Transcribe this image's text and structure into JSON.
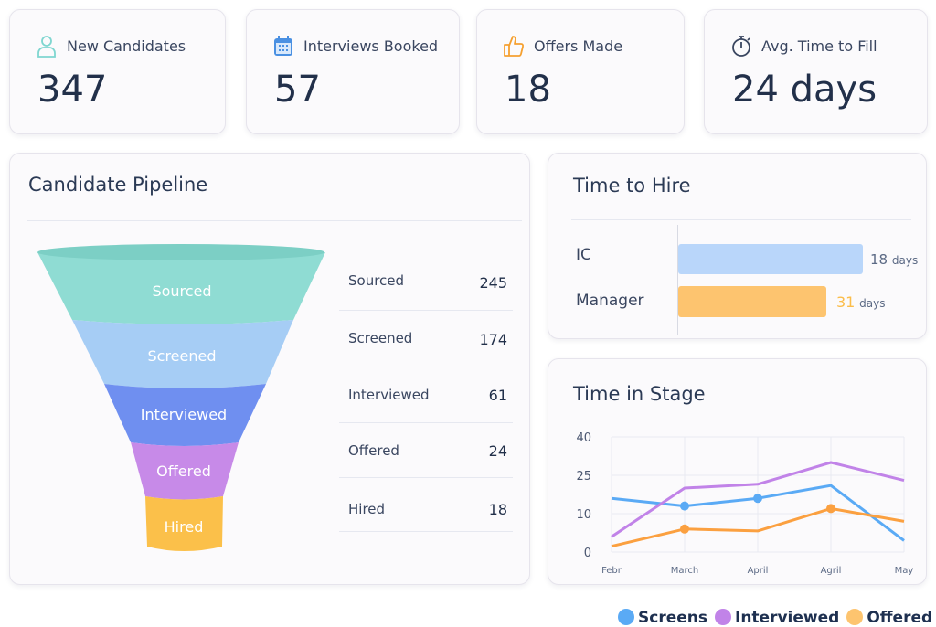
{
  "kpis": [
    {
      "label": "New Candidates",
      "value": "347",
      "icon": "person-icon",
      "color": "#7fd6d0"
    },
    {
      "label": "Interviews Booked",
      "value": "57",
      "icon": "calendar-icon",
      "color": "#4a90e2"
    },
    {
      "label": "Offers Made",
      "value": "18",
      "icon": "thumbs-up-icon",
      "color": "#f5a030"
    },
    {
      "label": "Avg. Time to Fill",
      "value": "24 days",
      "icon": "stopwatch-icon",
      "color": "#3a4660"
    }
  ],
  "pipeline": {
    "title": "Candidate Pipeline",
    "stages": [
      {
        "label": "Sourced",
        "value": "245",
        "color": "#8fdcd3"
      },
      {
        "label": "Screened",
        "value": "174",
        "color": "#a6cdf5"
      },
      {
        "label": "Interviewed",
        "value": "61",
        "color": "#6f8ff0"
      },
      {
        "label": "Offered",
        "value": "24",
        "color": "#c78ae8"
      },
      {
        "label": "Hired",
        "value": "18",
        "color": "#fbc04a"
      }
    ]
  },
  "time_to_hire": {
    "title": "Time to Hire",
    "bars": [
      {
        "label": "IC",
        "value": "18",
        "unit": "days",
        "color": "#b9d6fa"
      },
      {
        "label": "Manager",
        "value": "31",
        "unit": "days",
        "color": "#fdc46f"
      }
    ]
  },
  "chart_data": {
    "type": "line",
    "title": "Time in Stage",
    "categories": [
      "Febr",
      "March",
      "April",
      "Agril",
      "May"
    ],
    "yticks": [
      0,
      10,
      25,
      40
    ],
    "ylim": [
      0,
      40
    ],
    "grid": true,
    "legend_position": "bottom-right",
    "series": [
      {
        "name": "Screens",
        "color": "#5aaaf5",
        "values": [
          16,
          13,
          16,
          21,
          3
        ],
        "markers": [
          false,
          true,
          true,
          false,
          false
        ]
      },
      {
        "name": "Interviewed",
        "color": "#c183e8",
        "values": [
          4,
          20,
          21.5,
          30,
          23
        ],
        "markers": [
          false,
          false,
          false,
          false,
          false
        ]
      },
      {
        "name": "Offered",
        "color": "#fba040",
        "values": [
          1.5,
          6,
          5.5,
          12,
          8
        ],
        "markers": [
          false,
          true,
          false,
          true,
          false
        ]
      }
    ]
  }
}
